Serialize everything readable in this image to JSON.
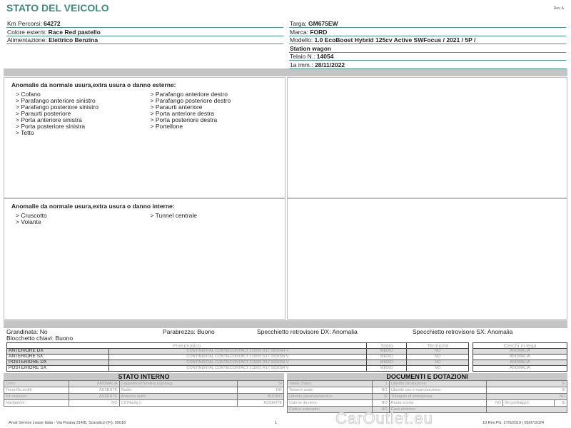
{
  "header": {
    "title": "STATO DEL VEICOLO",
    "rev": "Rev. A"
  },
  "left_fields": [
    {
      "label": "Km Percorsi: ",
      "value": "64272"
    },
    {
      "label": "Colore esterni: ",
      "value": "Race Red pastello"
    },
    {
      "label": "Alimentazione: ",
      "value": "Elettrico Benzina"
    }
  ],
  "right_fields": [
    {
      "label": "Targa: ",
      "value": "GM675EW"
    },
    {
      "label": "Marca: ",
      "value": "FORD"
    },
    {
      "label": "Modello: ",
      "value": "1.0 EcoBoost Hybrid 125cv Active SWFocus / 2021 / 5P /"
    },
    {
      "label": "",
      "value": "Station wagon"
    },
    {
      "label": "Telaio N.: ",
      "value": "14054"
    },
    {
      "label": "1a imm.: ",
      "value": "28/11/2022"
    }
  ],
  "external": {
    "title": "Anomalie da normale usura,extra usura o danno esterne:",
    "col1": [
      "> Cofano",
      "> Parafango anteriore sinistro",
      "> Parafango posteriore sinistro",
      "> Paraurti posteriore",
      "> Porta anteriore sinistra",
      "> Porta posteriore sinistra",
      "> Tetto"
    ],
    "col2": [
      "> Parafango anteriore destro",
      "> Parafango posteriore destro",
      "> Paraurti anteriore",
      "> Porta anteriore destra",
      "> Porta posteriore destra",
      "> Portellone"
    ]
  },
  "internal": {
    "title": "Anomalie da normale usura,extra usura o danno interne:",
    "col1": [
      "> Cruscotto",
      "> Volante"
    ],
    "col2": [
      "> Tunnel centrale"
    ]
  },
  "conditions": {
    "grandinata": "Grandinata: No",
    "blocchetto": "Blocchetto chiavi: Buono",
    "parabrezza": "Parabrezza: Buono",
    "specchio_dx": "Specchietto retrovisore DX: Anomalia",
    "specchio_sx": "Specchietto retrovisore SX: Anomalia"
  },
  "tyres": {
    "headers": [
      "Pneumatico",
      "Stato",
      "Termiche"
    ],
    "rims_header": "Cerchi in lega",
    "rows": [
      {
        "pos": "ANTERIORE DX",
        "tyre": "CONTINENTAL CONTIECONTACT 215/55 R17 000/094 V",
        "stato": "MEDIO",
        "termiche": "NO",
        "rim": "ANOMALIA"
      },
      {
        "pos": "ANTERIORE SX",
        "tyre": "CONTINENTAL CONTIECONTACT 215/55 R17 000/094 V",
        "stato": "MEDIO",
        "termiche": "NO",
        "rim": "ANOMALIA"
      },
      {
        "pos": "POSTERIORE DX",
        "tyre": "CONTINENTAL CONTIECONTACT 215/55 R17 000/094 V",
        "stato": "MEDIO",
        "termiche": "NO",
        "rim": "ANOMALIA"
      },
      {
        "pos": "POSTERIORE SX",
        "tyre": "CONTINENTAL CONTIECONTACT 215/55 R17 000/094 V",
        "stato": "MEDIO",
        "termiche": "NO",
        "rim": "ANOMALIA"
      }
    ]
  },
  "stato_interno": {
    "title": "STATO INTERNO",
    "rows": [
      [
        "Cielo:",
        "ANOMALIA",
        "Cappelliera/Tendina copribag:",
        "SI"
      ],
      [
        "Terza fila sedili:",
        "ASSENTE",
        "Radio:",
        "NO"
      ],
      [
        "Kit vivavoce:",
        "ASSENTE",
        "Antenna radio:",
        "BUONO"
      ],
      [
        "Navigatore:",
        "NO",
        "CD(Navig.):",
        "ASSENTE"
      ]
    ]
  },
  "documenti": {
    "title": "DOCUMENTI E DOTAZIONI",
    "rows": [
      [
        "Totale chiavi:",
        "1",
        "Libretto circolazione:",
        "SI"
      ],
      [
        "Tessere code:",
        "NO",
        "Libretto uso e manutenzione:",
        "SI"
      ],
      [
        "Libretto garanzia/service:",
        "SI",
        "Triangolo di emergenza:",
        "NO"
      ],
      [
        "Catene da neve:",
        "NO",
        "Ruota scorta:",
        "NO",
        "Kit gonfiaggio:",
        "SI"
      ],
      [
        "Codice autoradio:",
        "NO",
        "Cavo elettrico:",
        ""
      ]
    ]
  },
  "footer": {
    "address": "Arval Service Lease Italia - Via Pisana 314/B, Scandicci (FI), 50018",
    "page": "1",
    "right": "10 Rev.PG. 27/5/2019 | 05/07/2024"
  },
  "watermark": "CarOutlet.eu"
}
